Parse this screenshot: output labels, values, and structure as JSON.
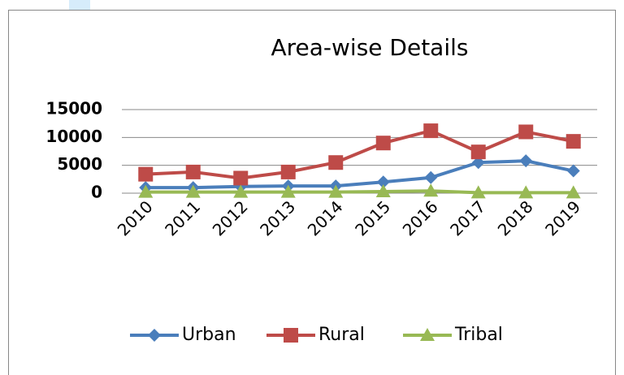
{
  "chart_data": {
    "type": "line",
    "title": "Area-wise Details",
    "categories": [
      "2010",
      "2011",
      "2012",
      "2013",
      "2014",
      "2015",
      "2016",
      "2017",
      "2018",
      "2019"
    ],
    "series": [
      {
        "name": "Urban",
        "color": "#4a7ebb",
        "marker": "diamond",
        "values": [
          1000,
          1000,
          1200,
          1300,
          1300,
          2000,
          2800,
          5500,
          5800,
          4000
        ]
      },
      {
        "name": "Rural",
        "color": "#be4b48",
        "marker": "square",
        "values": [
          3400,
          3800,
          2700,
          3800,
          5500,
          9000,
          11200,
          7400,
          11000,
          9300
        ]
      },
      {
        "name": "Tribal",
        "color": "#98b954",
        "marker": "triangle",
        "values": [
          200,
          200,
          200,
          200,
          200,
          300,
          400,
          100,
          100,
          100
        ]
      }
    ],
    "ylim": [
      0,
      15000
    ],
    "yticks": [
      0,
      5000,
      10000,
      15000
    ],
    "grid": true,
    "legend": "bottom"
  }
}
